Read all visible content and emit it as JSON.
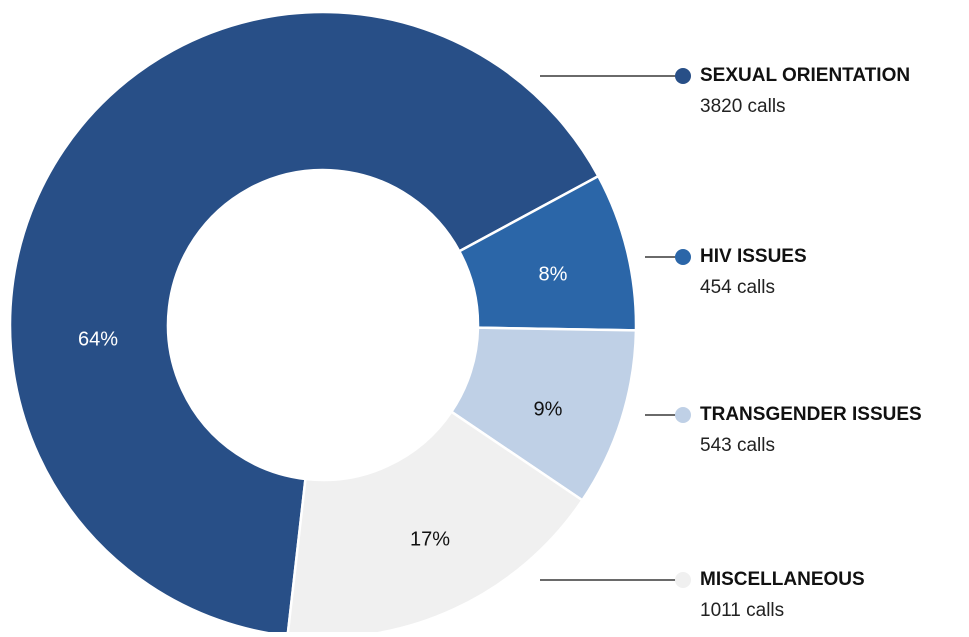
{
  "chart_data": {
    "type": "donut",
    "series": [
      {
        "name": "SEXUAL ORIENTATION",
        "color": "#284f87",
        "value": 64,
        "value_label": "64%",
        "detail": "3820 calls"
      },
      {
        "name": "HIV ISSUES",
        "color": "#2b66a8",
        "value": 8,
        "value_label": "8%",
        "detail": "454 calls"
      },
      {
        "name": "TRANSGENDER ISSUES",
        "color": "#bfd0e6",
        "value": 9,
        "value_label": "9%",
        "detail": "543 calls"
      },
      {
        "name": "MISCELLANEOUS",
        "color": "#f0f0f0",
        "value": 17,
        "value_label": "17%",
        "detail": "1011 calls"
      }
    ]
  }
}
